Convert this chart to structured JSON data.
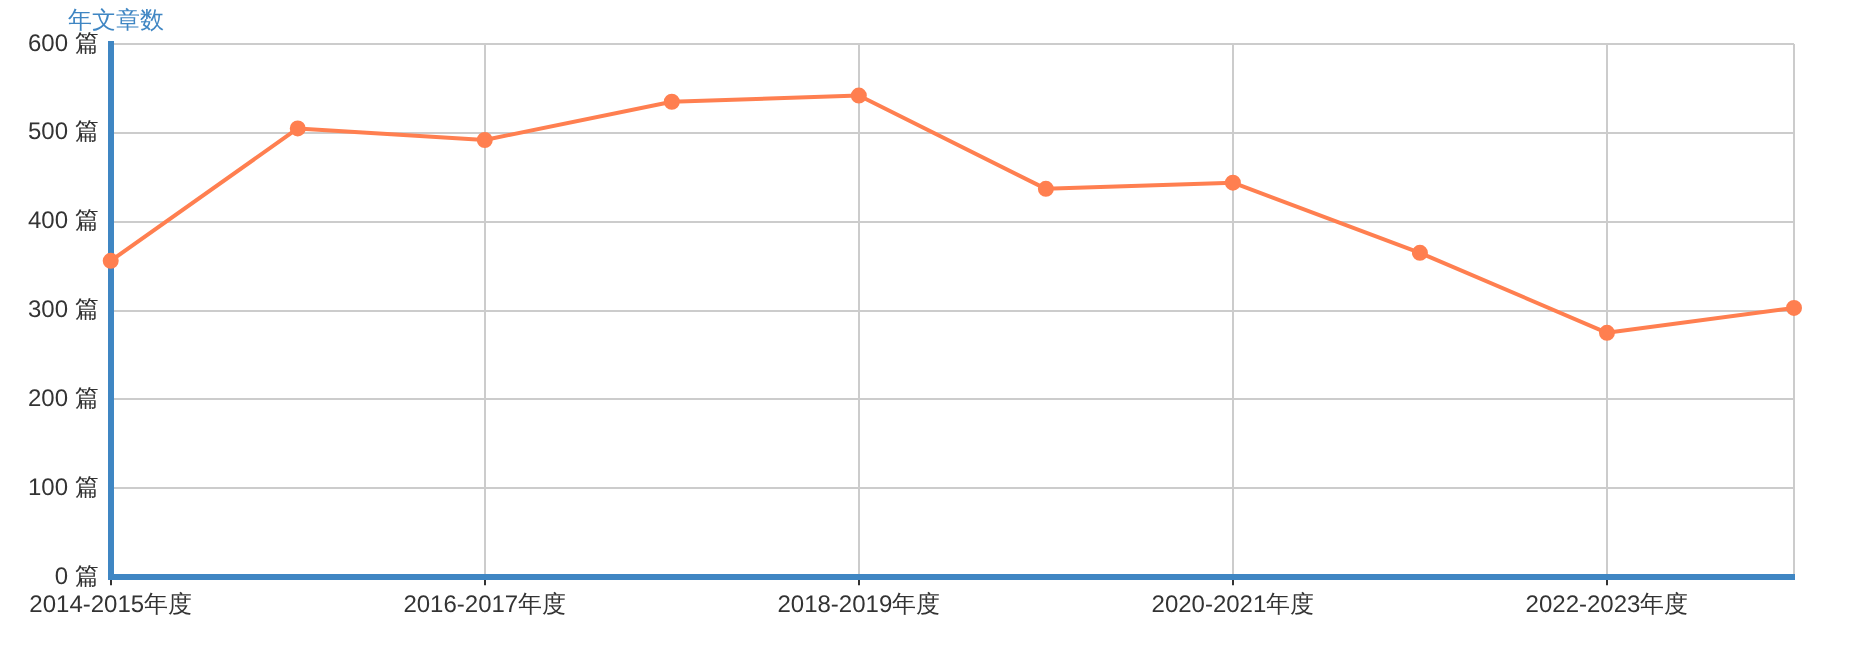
{
  "chart_data": {
    "type": "line",
    "ylabel": "年文章数",
    "categories": [
      "2014-2015年度",
      null,
      "2016-2017年度",
      null,
      "2018-2019年度",
      null,
      "2020-2021年度",
      null,
      "2022-2023年度",
      null
    ],
    "series": [
      {
        "color": "#ff7f50",
        "values": [
          356,
          505,
          492,
          535,
          542,
          437,
          444,
          365,
          275,
          303
        ]
      }
    ],
    "ylim": [
      0,
      600
    ],
    "yticks": [
      {
        "value": 0,
        "label": "0 篇"
      },
      {
        "value": 100,
        "label": "100 篇"
      },
      {
        "value": 200,
        "label": "200 篇"
      },
      {
        "value": 300,
        "label": "300 篇"
      },
      {
        "value": 400,
        "label": "400 篇"
      },
      {
        "value": 500,
        "label": "500 篇"
      },
      {
        "value": 600,
        "label": "600 篇"
      }
    ],
    "grid": true,
    "marker": "circle",
    "line_style": "solid"
  }
}
